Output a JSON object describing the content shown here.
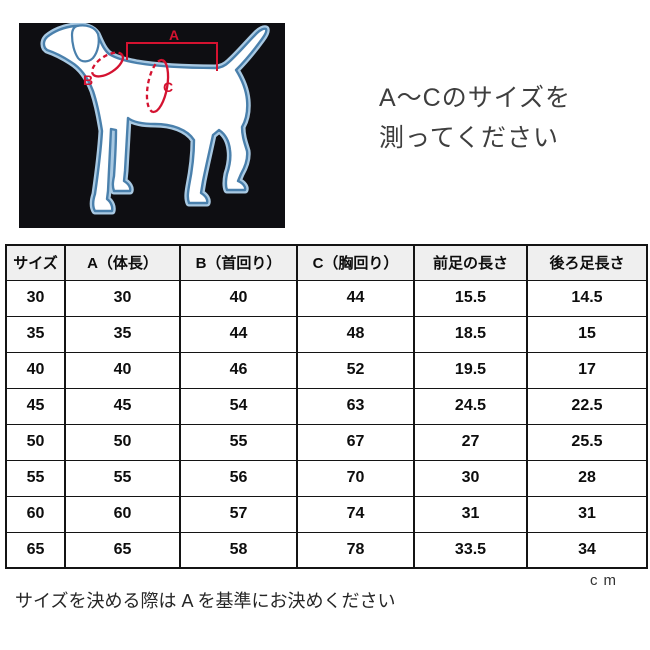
{
  "diagram": {
    "marker_a": "A",
    "marker_b": "B",
    "marker_c": "C",
    "marker_color": "#d41230",
    "outline_color": "#4a80ac",
    "background_color": "#0e0e12"
  },
  "instruction": {
    "line1": "A〜Cのサイズを",
    "line2": "測ってください"
  },
  "chart_data": {
    "type": "table",
    "columns": [
      "サイズ",
      "A（体長）",
      "B（首回り）",
      "C（胸回り）",
      "前足の長さ",
      "後ろ足長さ"
    ],
    "column_keys": [
      "size",
      "body-length",
      "neck-girth",
      "chest-girth",
      "front-leg-length",
      "hind-leg-length"
    ],
    "rows": [
      [
        "30",
        "30",
        "40",
        "44",
        "15.5",
        "14.5"
      ],
      [
        "35",
        "35",
        "44",
        "48",
        "18.5",
        "15"
      ],
      [
        "40",
        "40",
        "46",
        "52",
        "19.5",
        "17"
      ],
      [
        "45",
        "45",
        "54",
        "63",
        "24.5",
        "22.5"
      ],
      [
        "50",
        "50",
        "55",
        "67",
        "27",
        "25.5"
      ],
      [
        "55",
        "55",
        "56",
        "70",
        "30",
        "28"
      ],
      [
        "60",
        "60",
        "57",
        "74",
        "31",
        "31"
      ],
      [
        "65",
        "65",
        "58",
        "78",
        "33.5",
        "34"
      ]
    ],
    "unit": "cm"
  },
  "footer": {
    "note": "サイズを決める際は A を基準にお決めください",
    "unit_label": "ｃｍ"
  }
}
